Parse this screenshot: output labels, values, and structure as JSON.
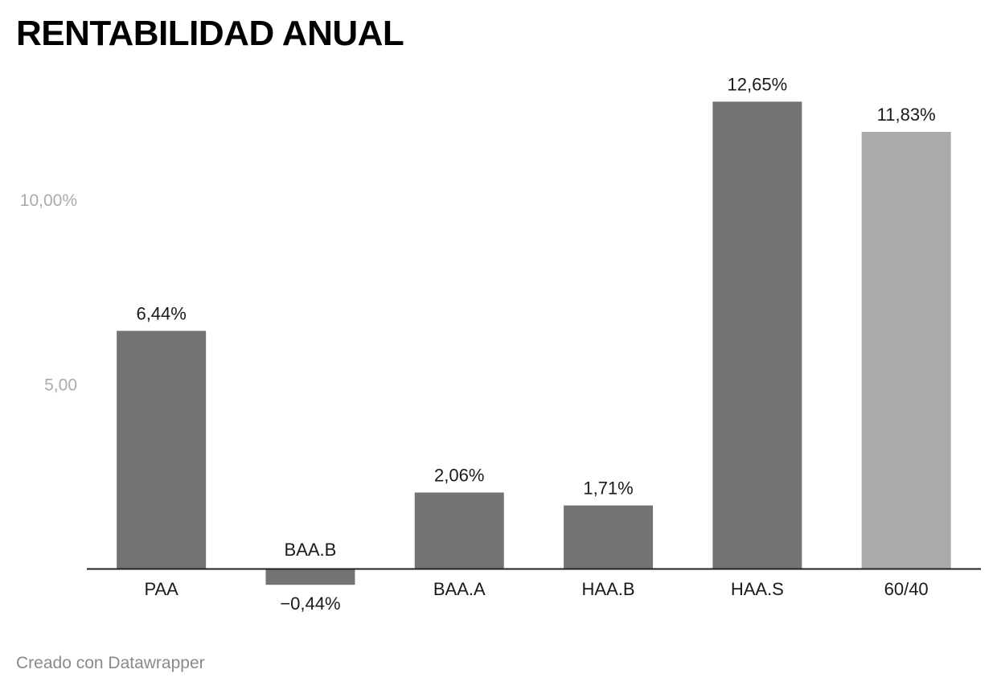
{
  "chart_data": {
    "type": "bar",
    "title": "RENTABILIDAD ANUAL",
    "categories": [
      "PAA",
      "BAA.B",
      "BAA.A",
      "HAA.B",
      "HAA.S",
      "60/40"
    ],
    "values": [
      6.44,
      -0.44,
      2.06,
      1.71,
      12.65,
      11.83
    ],
    "value_labels": [
      "6,44%",
      "−0,44%",
      "2,06%",
      "1,71%",
      "12,65%",
      "11,83%"
    ],
    "colors": [
      "#737373",
      "#737373",
      "#737373",
      "#737373",
      "#737373",
      "#aaaaaa"
    ],
    "y_ticks": [
      5,
      10
    ],
    "y_tick_labels": [
      "5,00",
      "10,00%"
    ],
    "ylim": [
      -1,
      13
    ],
    "grid": false,
    "xlabel": "",
    "ylabel": ""
  },
  "footer": {
    "credit": "Creado con Datawrapper"
  }
}
